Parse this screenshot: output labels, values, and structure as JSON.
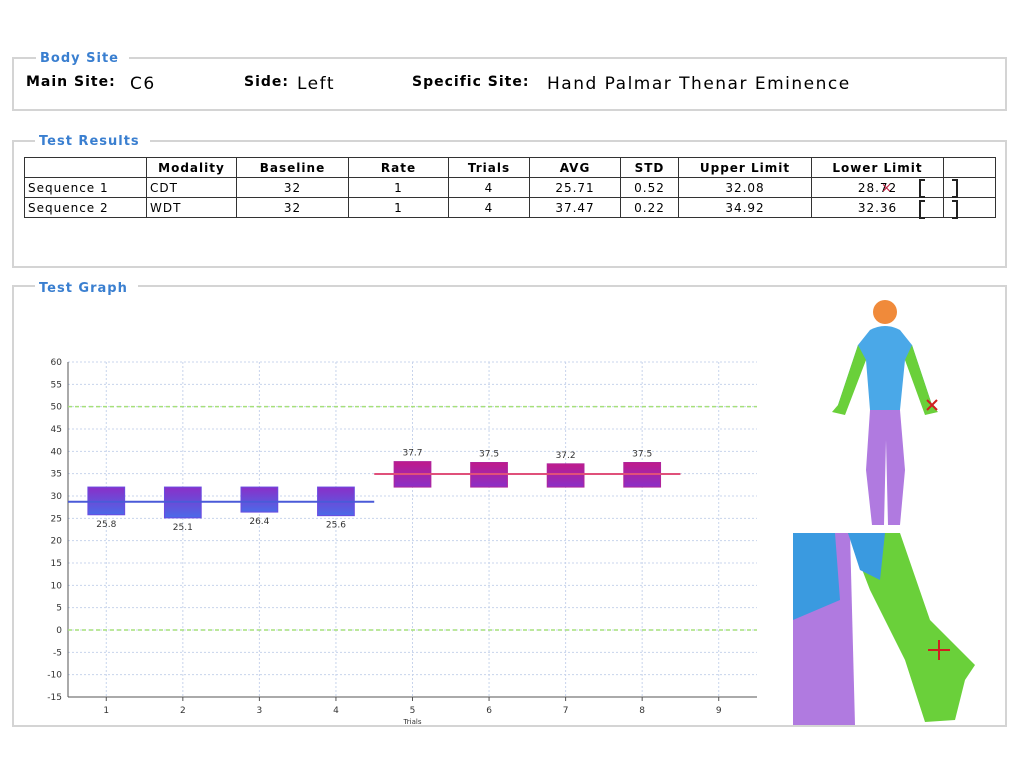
{
  "body_site": {
    "title": "Body Site",
    "main_site_label": "Main Site:",
    "main_site": "C6",
    "side_label": "Side:",
    "side": "Left",
    "specific_site_label": "Specific Site:",
    "specific_site": "Hand Palmar Thenar Eminence"
  },
  "test_results": {
    "title": "Test Results",
    "columns": [
      "Modality",
      "Baseline",
      "Rate",
      "Trials",
      "AVG",
      "STD",
      "Upper Limit",
      "Lower Limit"
    ],
    "rows": [
      [
        "Sequence 1",
        "CDT",
        32,
        1,
        4,
        25.71,
        0.52,
        32.08,
        28.72
      ],
      [
        "Sequence 2",
        "WDT",
        32,
        1,
        4,
        37.47,
        0.22,
        34.92,
        32.36
      ]
    ]
  },
  "test_graph": {
    "title": "Test Graph"
  },
  "chart_data": {
    "type": "floating-bar",
    "x_label": "Trials",
    "xlim": [
      0.5,
      9.5
    ],
    "xticks": [
      1,
      2,
      3,
      4,
      5,
      6,
      7,
      8,
      9
    ],
    "ylim": [
      -15,
      60
    ],
    "yticks": [
      -15,
      -10,
      -5,
      0,
      5,
      10,
      15,
      20,
      25,
      30,
      35,
      40,
      45,
      50,
      55,
      60
    ],
    "grid": true,
    "ref_lines": [
      0,
      50
    ],
    "ref_color": "#a6e07a",
    "series": [
      {
        "x": [
          1,
          2,
          3,
          4
        ],
        "values": [
          25.8,
          25.1,
          26.4,
          25.6
        ],
        "color": "#6a4be0",
        "line_color": "#4a5ad8"
      },
      {
        "x": [
          5,
          6,
          7,
          8
        ],
        "values": [
          37.7,
          37.5,
          37.2,
          37.5
        ],
        "color": "#b0249a",
        "line_color": "#e0507a"
      }
    ]
  }
}
